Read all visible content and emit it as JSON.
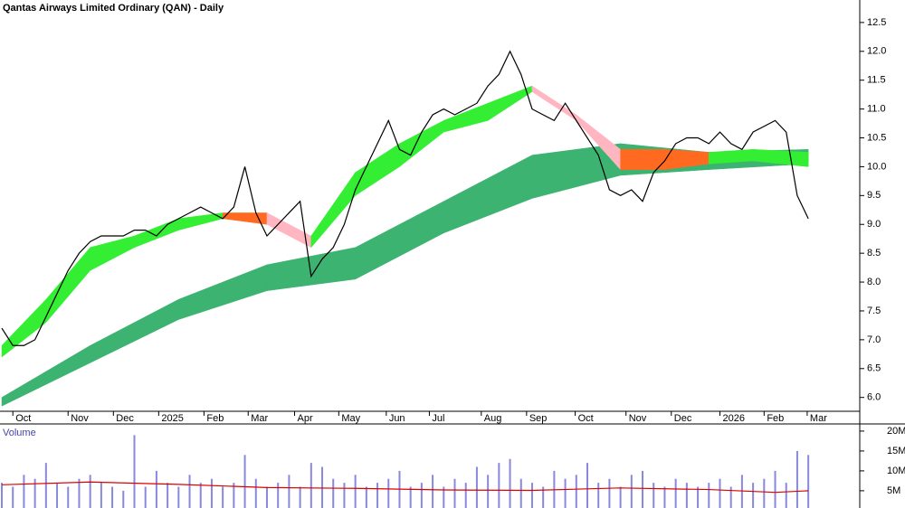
{
  "chart_data": {
    "type": "stock",
    "title": "Qantas Airways Limited Ordinary (QAN) - Daily",
    "xlim": [
      0,
      75.2
    ],
    "xticks": [
      {
        "value": 1.0,
        "label": "Oct"
      },
      {
        "value": 6.0,
        "label": "Nov"
      },
      {
        "value": 10.1,
        "label": "Dec"
      },
      {
        "value": 14.2,
        "label": "2025"
      },
      {
        "value": 18.3,
        "label": "Feb"
      },
      {
        "value": 22.3,
        "label": "Mar"
      },
      {
        "value": 26.5,
        "label": "Apr"
      },
      {
        "value": 30.5,
        "label": "May"
      },
      {
        "value": 34.8,
        "label": "Jun"
      },
      {
        "value": 38.7,
        "label": "Jul"
      },
      {
        "value": 43.4,
        "label": "Aug"
      },
      {
        "value": 47.5,
        "label": "Sep"
      },
      {
        "value": 51.9,
        "label": "Oct"
      },
      {
        "value": 56.5,
        "label": "Nov"
      },
      {
        "value": 60.6,
        "label": "Dec"
      },
      {
        "value": 65.0,
        "label": "2026"
      },
      {
        "value": 69.0,
        "label": "Feb"
      },
      {
        "value": 72.9,
        "label": "Mar"
      }
    ],
    "ylim": [
      5.76,
      12.89
    ],
    "yticks": [
      {
        "value": 6,
        "label": "6.0"
      },
      6.5,
      {
        "value": 7,
        "label": "7.0"
      },
      7.5,
      {
        "value": 8,
        "label": "8.0"
      },
      8.5,
      {
        "value": 9,
        "label": "9.0"
      },
      9.5,
      {
        "value": 10,
        "label": "10.0"
      },
      10.5,
      {
        "value": 11,
        "label": "11.0"
      },
      11.5,
      {
        "value": 12,
        "label": "12.0"
      },
      12.5
    ],
    "series": [
      {
        "name": "Close",
        "color": "#000000",
        "values": [
          7.2,
          6.9,
          6.9,
          7.0,
          7.4,
          7.8,
          8.2,
          8.5,
          8.7,
          8.8,
          8.8,
          8.8,
          8.9,
          8.9,
          8.8,
          9.0,
          9.1,
          9.2,
          9.3,
          9.2,
          9.1,
          9.3,
          10.0,
          9.2,
          8.8,
          9.0,
          9.2,
          9.4,
          8.1,
          8.4,
          8.6,
          9.0,
          9.6,
          10.0,
          10.4,
          10.8,
          10.3,
          10.2,
          10.6,
          10.9,
          11.0,
          10.9,
          11.0,
          11.1,
          11.4,
          11.6,
          12.0,
          11.6,
          11.0,
          10.9,
          10.8,
          11.1,
          10.8,
          10.5,
          10.2,
          9.6,
          9.5,
          9.6,
          9.4,
          9.9,
          10.1,
          10.4,
          10.5,
          10.5,
          10.4,
          10.6,
          10.4,
          10.3,
          10.6,
          10.7,
          10.8,
          10.6,
          9.5,
          9.1
        ]
      }
    ],
    "bands": [
      {
        "x": [
          0,
          8,
          16,
          24,
          32,
          40,
          48,
          56,
          64,
          73
        ],
        "lower": [
          5.85,
          6.6,
          7.35,
          7.85,
          8.05,
          8.85,
          9.45,
          9.85,
          9.95,
          10.05
        ],
        "upper": [
          6.0,
          6.9,
          7.7,
          8.3,
          8.6,
          9.4,
          10.2,
          10.4,
          10.25,
          10.3
        ],
        "colors": [
          "#3cb371",
          "#3cb371",
          "#3cb371",
          "#3cb371",
          "#3cb371",
          "#3cb371",
          "#3cb371",
          "#3cb371",
          "#3cb371"
        ]
      },
      {
        "x": [
          0,
          4,
          8,
          12,
          16,
          20,
          24,
          28,
          32,
          36,
          40,
          44,
          48,
          52,
          56,
          60,
          64,
          68,
          73
        ],
        "lower": [
          6.7,
          7.3,
          8.2,
          8.6,
          8.9,
          9.1,
          9.0,
          8.6,
          9.5,
          10.0,
          10.6,
          10.8,
          11.3,
          10.8,
          9.95,
          9.95,
          10.05,
          10.1,
          10.0
        ],
        "upper": [
          6.9,
          7.7,
          8.6,
          8.8,
          9.1,
          9.2,
          9.2,
          8.8,
          9.9,
          10.4,
          10.8,
          11.1,
          11.4,
          10.9,
          10.3,
          10.3,
          10.25,
          10.3,
          10.25
        ],
        "colors": [
          "#33ee33",
          "#33ee33",
          "#33ee33",
          "#33ee33",
          "#33ee33",
          "#ff6a20",
          "#ffb6c1",
          "#33ee33",
          "#33ee33",
          "#33ee33",
          "#33ee33",
          "#33ee33",
          "#ffb6c1",
          "#ffb6c1",
          "#ff6a20",
          "#ff6a20",
          "#33ee33",
          "#33ee33"
        ]
      }
    ],
    "volume": {
      "label": "Volume",
      "color": "#8888dd",
      "ylim": [
        0.66,
        21.8
      ],
      "yticks": [
        {
          "value": 5,
          "label": "5M"
        },
        {
          "value": 10,
          "label": "10M"
        },
        {
          "value": 15,
          "label": "15M"
        },
        {
          "value": 20,
          "label": "20M"
        }
      ],
      "values": [
        7,
        6,
        9,
        8,
        12,
        7,
        6,
        8,
        9,
        7,
        6,
        5,
        19,
        6,
        10,
        7,
        6,
        9,
        7,
        8,
        6,
        7,
        14,
        8,
        6,
        7,
        9,
        6,
        12,
        11,
        8,
        7,
        9,
        6,
        7,
        8,
        10,
        6,
        7,
        9,
        6,
        8,
        7,
        11,
        9,
        12,
        13,
        8,
        7,
        6,
        10,
        8,
        9,
        12,
        7,
        8,
        6,
        9,
        10,
        7,
        6,
        8,
        7,
        6,
        7,
        8,
        6,
        9,
        7,
        8,
        10,
        7,
        15,
        14
      ],
      "average": {
        "color": "#dd0000",
        "x": [
          0,
          8,
          16,
          24,
          32,
          40,
          48,
          56,
          64,
          70,
          73
        ],
        "values": [
          6.5,
          7.2,
          6.6,
          5.8,
          5.6,
          5.2,
          5.1,
          5.7,
          5.3,
          4.6,
          5.0
        ]
      }
    }
  }
}
